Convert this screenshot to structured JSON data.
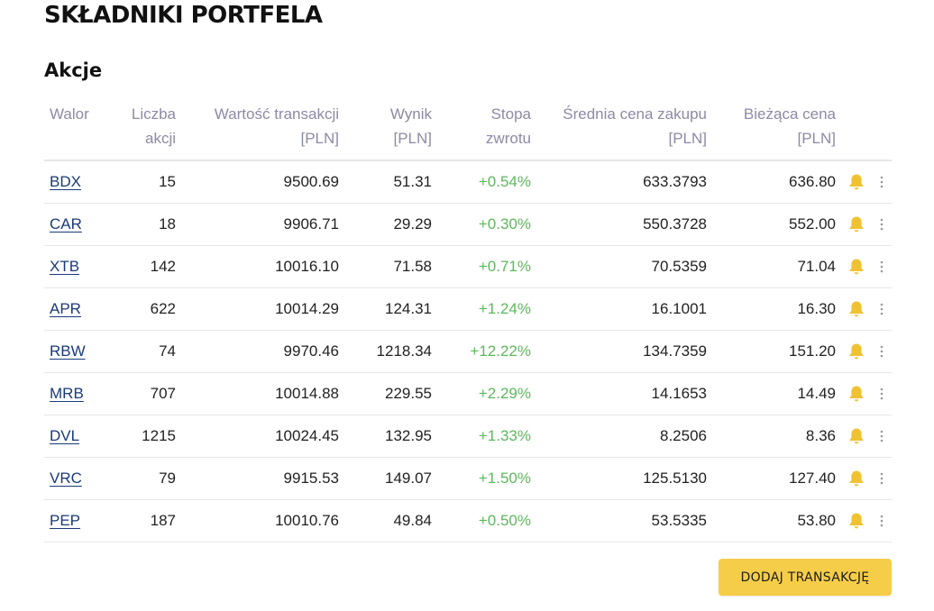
{
  "page": {
    "title": "SKŁADNIKI PORTFELA",
    "section_title": "Akcje"
  },
  "table": {
    "headers": [
      "Walor",
      "Liczba\nakcji",
      "Wartość transakcji\n[PLN]",
      "Wynik\n[PLN]",
      "Stopa\nzwrotu",
      "Średnia cena zakupu\n[PLN]",
      "Bieżąca cena\n[PLN]"
    ],
    "rows": [
      [
        "BDX",
        "15",
        "9500.69",
        "51.31",
        "+0.54%",
        "633.3793",
        "636.80"
      ],
      [
        "CAR",
        "18",
        "9906.71",
        "29.29",
        "+0.30%",
        "550.3728",
        "552.00"
      ],
      [
        "XTB",
        "142",
        "10016.10",
        "71.58",
        "+0.71%",
        "70.5359",
        "71.04"
      ],
      [
        "APR",
        "622",
        "10014.29",
        "124.31",
        "+1.24%",
        "16.1001",
        "16.30"
      ],
      [
        "RBW",
        "74",
        "9970.46",
        "1218.34",
        "+12.22%",
        "134.7359",
        "151.20"
      ],
      [
        "MRB",
        "707",
        "10014.88",
        "229.55",
        "+2.29%",
        "14.1653",
        "14.49"
      ],
      [
        "DVL",
        "1215",
        "10024.45",
        "132.95",
        "+1.33%",
        "8.2506",
        "8.36"
      ],
      [
        "VRC",
        "79",
        "9915.53",
        "149.07",
        "+1.50%",
        "125.5130",
        "127.40"
      ],
      [
        "PEP",
        "187",
        "10010.76",
        "49.84",
        "+0.50%",
        "53.5335",
        "53.80"
      ]
    ],
    "row_icons": [
      "bell-icon",
      "more-vertical-icon"
    ]
  },
  "actions": {
    "add_transaction_label": "DODAJ TRANSAKCJĘ"
  },
  "colors": {
    "accent": "#f5cd48",
    "header_text": "#8d8aa5",
    "positive_return": "#5cb85c",
    "link": "#1a3a7a",
    "bell": "#f0c233",
    "divider": "#e6e6e6"
  }
}
